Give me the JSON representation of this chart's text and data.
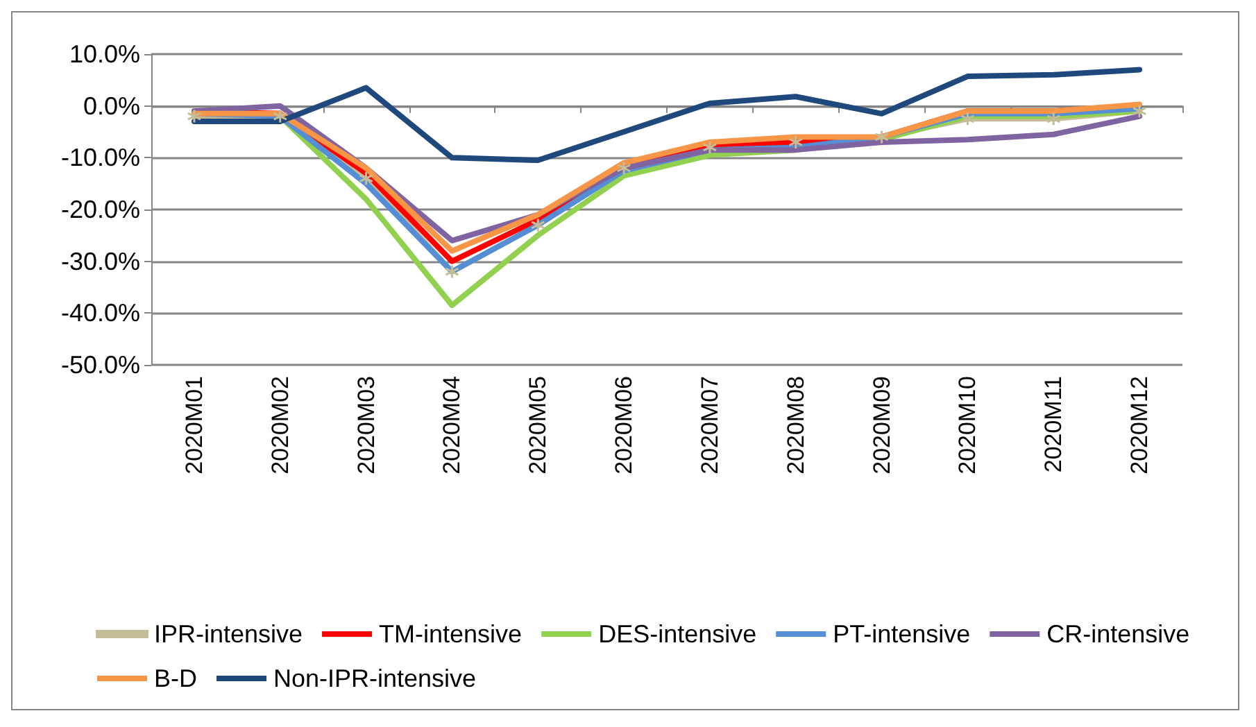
{
  "chart_data": {
    "type": "line",
    "categories": [
      "2020M01",
      "2020M02",
      "2020M03",
      "2020M04",
      "2020M05",
      "2020M06",
      "2020M07",
      "2020M08",
      "2020M09",
      "2020M10",
      "2020M11",
      "2020M12"
    ],
    "ylim": [
      -50,
      10
    ],
    "yticks": [
      {
        "value": -50,
        "label": "-50.0%"
      },
      {
        "value": -40,
        "label": "-40.0%"
      },
      {
        "value": -30,
        "label": "-30.0%"
      },
      {
        "value": -20,
        "label": "-20.0%"
      },
      {
        "value": -10,
        "label": "-10.0%"
      },
      {
        "value": 0,
        "label": "0.0%"
      },
      {
        "value": 10,
        "label": "10.0%"
      }
    ],
    "grid": "y",
    "legend": "bottom",
    "marker": "none",
    "line_style": "solid",
    "series": [
      {
        "name": "IPR-intensive",
        "color": "#c4bd97",
        "marker": "cross",
        "values": [
          -2,
          -2,
          -14,
          -32,
          -23,
          -12,
          -8,
          -7,
          -6,
          -2.5,
          -2.5,
          -1
        ]
      },
      {
        "name": "TM-intensive",
        "color": "#ff0000",
        "values": [
          -1,
          -1.5,
          -13,
          -30,
          -22,
          -11.5,
          -8,
          -7,
          -6,
          -1,
          -1,
          0
        ]
      },
      {
        "name": "DES-intensive",
        "color": "#92d050",
        "values": [
          -1,
          -2,
          -18,
          -38.5,
          -25,
          -13.5,
          -9.5,
          -8.5,
          -6.5,
          -2,
          -2,
          -1
        ]
      },
      {
        "name": "PT-intensive",
        "color": "#558ed5",
        "values": [
          -1.5,
          -2,
          -15,
          -32,
          -23,
          -12.5,
          -8.5,
          -8,
          -6,
          -1.5,
          -1.5,
          -0.5
        ]
      },
      {
        "name": "CR-intensive",
        "color": "#8064a2",
        "values": [
          -1,
          0,
          -12,
          -26,
          -21,
          -12,
          -8.5,
          -8.5,
          -7,
          -6.5,
          -5.5,
          -2
        ]
      },
      {
        "name": "B-D",
        "color": "#f79646",
        "values": [
          -1.5,
          -1.5,
          -12,
          -28,
          -21,
          -11,
          -7,
          -6,
          -6,
          -1,
          -1,
          0.3
        ]
      },
      {
        "name": "Non-IPR-intensive",
        "color": "#1f497d",
        "values": [
          -3,
          -3,
          3.5,
          -10,
          -10.5,
          -5,
          0.5,
          1.8,
          -1.5,
          5.7,
          6,
          7
        ]
      }
    ]
  }
}
